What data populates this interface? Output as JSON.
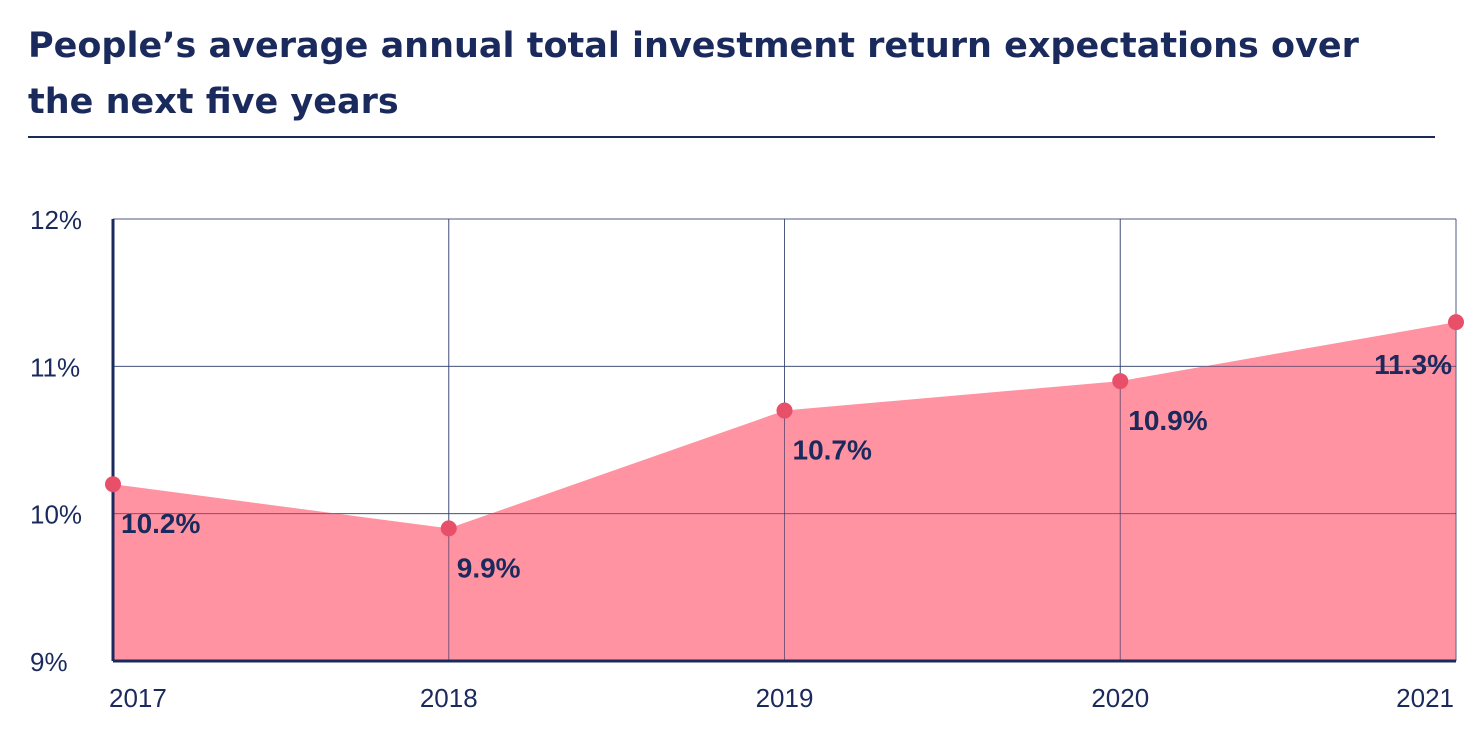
{
  "title": "People’s average annual total investment return expectations over the next five years",
  "colors": {
    "text": "#1b2a5c",
    "area_fill": "#ff8b9a",
    "marker": "#e8506a",
    "grid": "#8f96b3",
    "axis": "#1b2a5c"
  },
  "chart_data": {
    "type": "area",
    "title": "People’s average annual total investment return expectations over the next five years",
    "xlabel": "",
    "ylabel": "",
    "categories": [
      "2017",
      "2018",
      "2019",
      "2020",
      "2021"
    ],
    "series": [
      {
        "values": [
          10.2,
          9.9,
          10.7,
          10.9,
          11.3
        ],
        "data_labels": [
          "10.2%",
          "9.9%",
          "10.7%",
          "10.9%",
          "11.3%"
        ]
      }
    ],
    "ylim": [
      9,
      12
    ],
    "yticks": [
      9,
      10,
      11,
      12
    ],
    "ytick_labels": [
      "9%",
      "10%",
      "11%",
      "12%"
    ],
    "grid": true,
    "legend": "none"
  }
}
